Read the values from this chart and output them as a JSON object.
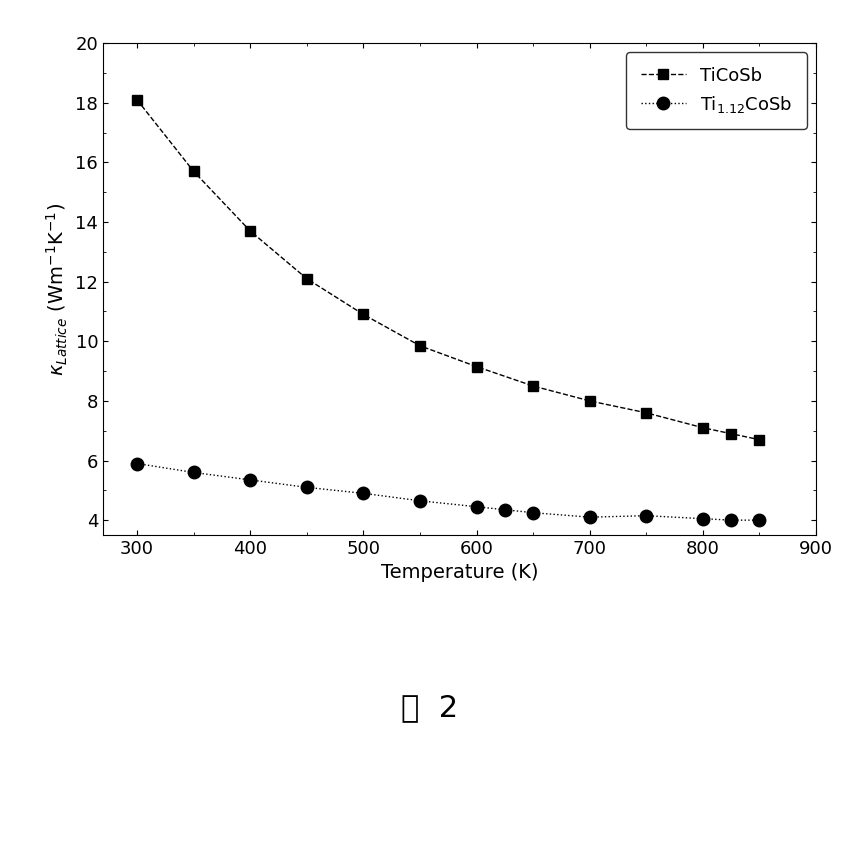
{
  "series1_label": "TiCoSb",
  "series2_label": "Ti$_{1.12}$CoSb",
  "series1_x": [
    300,
    350,
    400,
    450,
    500,
    550,
    600,
    650,
    700,
    750,
    800,
    825,
    850
  ],
  "series1_y": [
    18.1,
    15.7,
    13.7,
    12.1,
    10.9,
    9.85,
    9.15,
    8.5,
    8.0,
    7.6,
    7.1,
    6.9,
    6.7
  ],
  "series2_x": [
    300,
    350,
    400,
    450,
    500,
    550,
    600,
    625,
    650,
    700,
    750,
    800,
    825,
    850
  ],
  "series2_y": [
    5.9,
    5.6,
    5.35,
    5.1,
    4.9,
    4.65,
    4.45,
    4.35,
    4.25,
    4.1,
    4.15,
    4.05,
    4.0,
    4.0
  ],
  "xlabel": "Temperature (K)",
  "xlim": [
    270,
    900
  ],
  "ylim": [
    3.5,
    20
  ],
  "xticks": [
    300,
    400,
    500,
    600,
    700,
    800,
    900
  ],
  "yticks": [
    4,
    6,
    8,
    10,
    12,
    14,
    16,
    18,
    20
  ],
  "marker1": "s",
  "marker2": "o",
  "color": "#000000",
  "markersize1": 7,
  "markersize2": 9,
  "linewidth": 1.0,
  "legend_loc": "upper right",
  "caption_number": "2"
}
